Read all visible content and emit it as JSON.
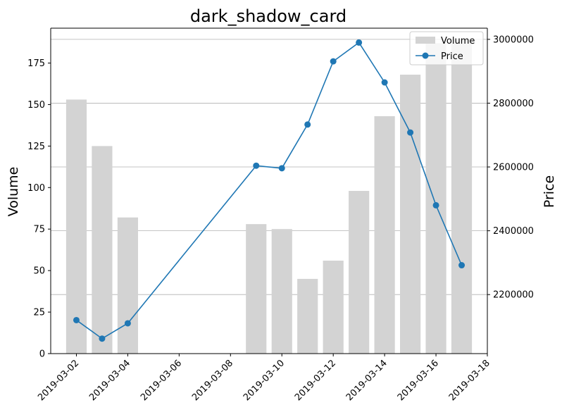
{
  "chart_data": {
    "type": "bar+line",
    "title": "dark_shadow_card",
    "ylabel_left": "Volume",
    "ylabel_right": "Price",
    "xlabel": "",
    "dates": [
      "2019-03-02",
      "2019-03-03",
      "2019-03-04",
      "2019-03-09",
      "2019-03-10",
      "2019-03-11",
      "2019-03-12",
      "2019-03-13",
      "2019-03-14",
      "2019-03-15",
      "2019-03-16",
      "2019-03-17"
    ],
    "volume": [
      153,
      125,
      82,
      78,
      75,
      45,
      56,
      98,
      143,
      168,
      187,
      189
    ],
    "price": [
      2120000,
      2062000,
      2110000,
      2604000,
      2596000,
      2733000,
      2931000,
      2990000,
      2865000,
      2708000,
      2480000,
      2292000
    ],
    "x_ticks": [
      "2019-03-02",
      "2019-03-04",
      "2019-03-06",
      "2019-03-08",
      "2019-03-10",
      "2019-03-12",
      "2019-03-14",
      "2019-03-16",
      "2019-03-18"
    ],
    "x_range": [
      "2019-03-01",
      "2019-03-18"
    ],
    "ylim_left": [
      0,
      196
    ],
    "yticks_left": [
      0,
      25,
      50,
      75,
      100,
      125,
      150,
      175
    ],
    "ylim_right": [
      2015000,
      3035000
    ],
    "yticks_right": [
      2200000,
      2400000,
      2600000,
      2800000,
      3000000
    ],
    "grid": "right-axis horizontal",
    "legend": {
      "placement": "top-right",
      "entries": [
        "Volume",
        "Price"
      ]
    },
    "colors": {
      "volume": "#d3d3d3",
      "price": "#1f77b4",
      "grid": "#b0b0b0"
    }
  }
}
